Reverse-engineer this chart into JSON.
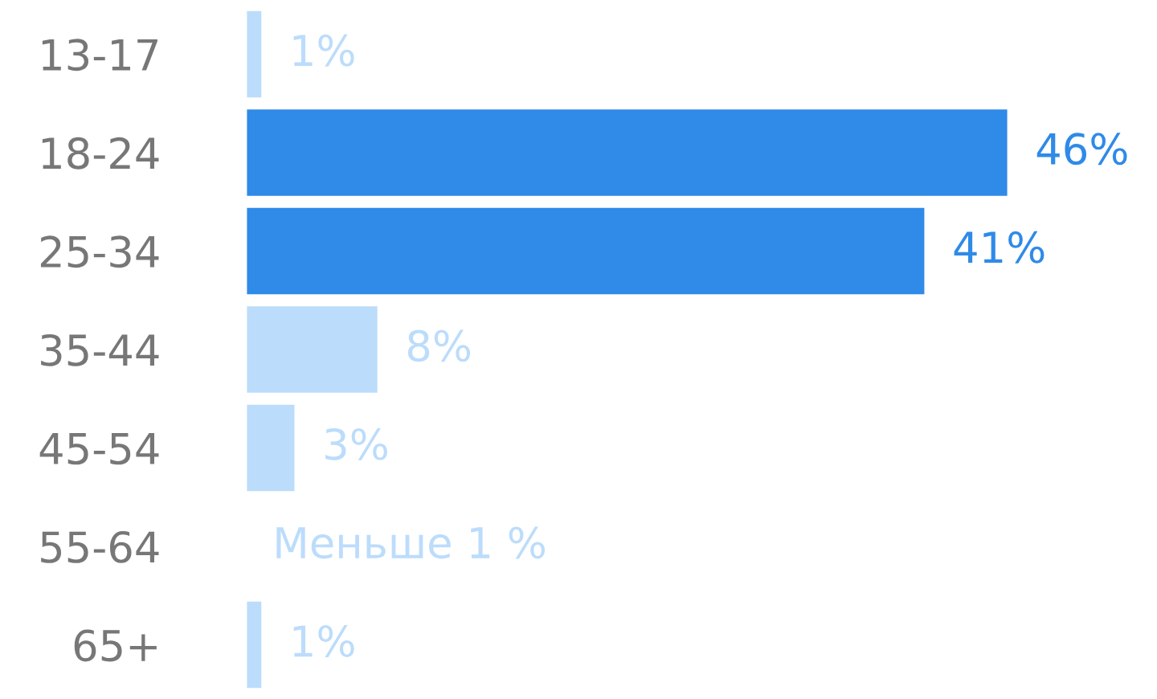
{
  "chart_data": {
    "type": "bar",
    "orientation": "horizontal",
    "categories": [
      "13-17",
      "18-24",
      "25-34",
      "35-44",
      "45-54",
      "55-64",
      "65+"
    ],
    "values": [
      1,
      46,
      41,
      8,
      3,
      null,
      1
    ],
    "colors": [
      "#bcdcfb",
      "#2f8ae8",
      "#2f8ae8",
      "#bcdcfb",
      "#bcdcfb",
      "#bcdcfb",
      "#bcdcfb"
    ],
    "value_labels": [
      "1%",
      "46%",
      "41%",
      "8%",
      "3%",
      "Меньше 1 %",
      "1%"
    ],
    "grid": false,
    "legend": false
  }
}
